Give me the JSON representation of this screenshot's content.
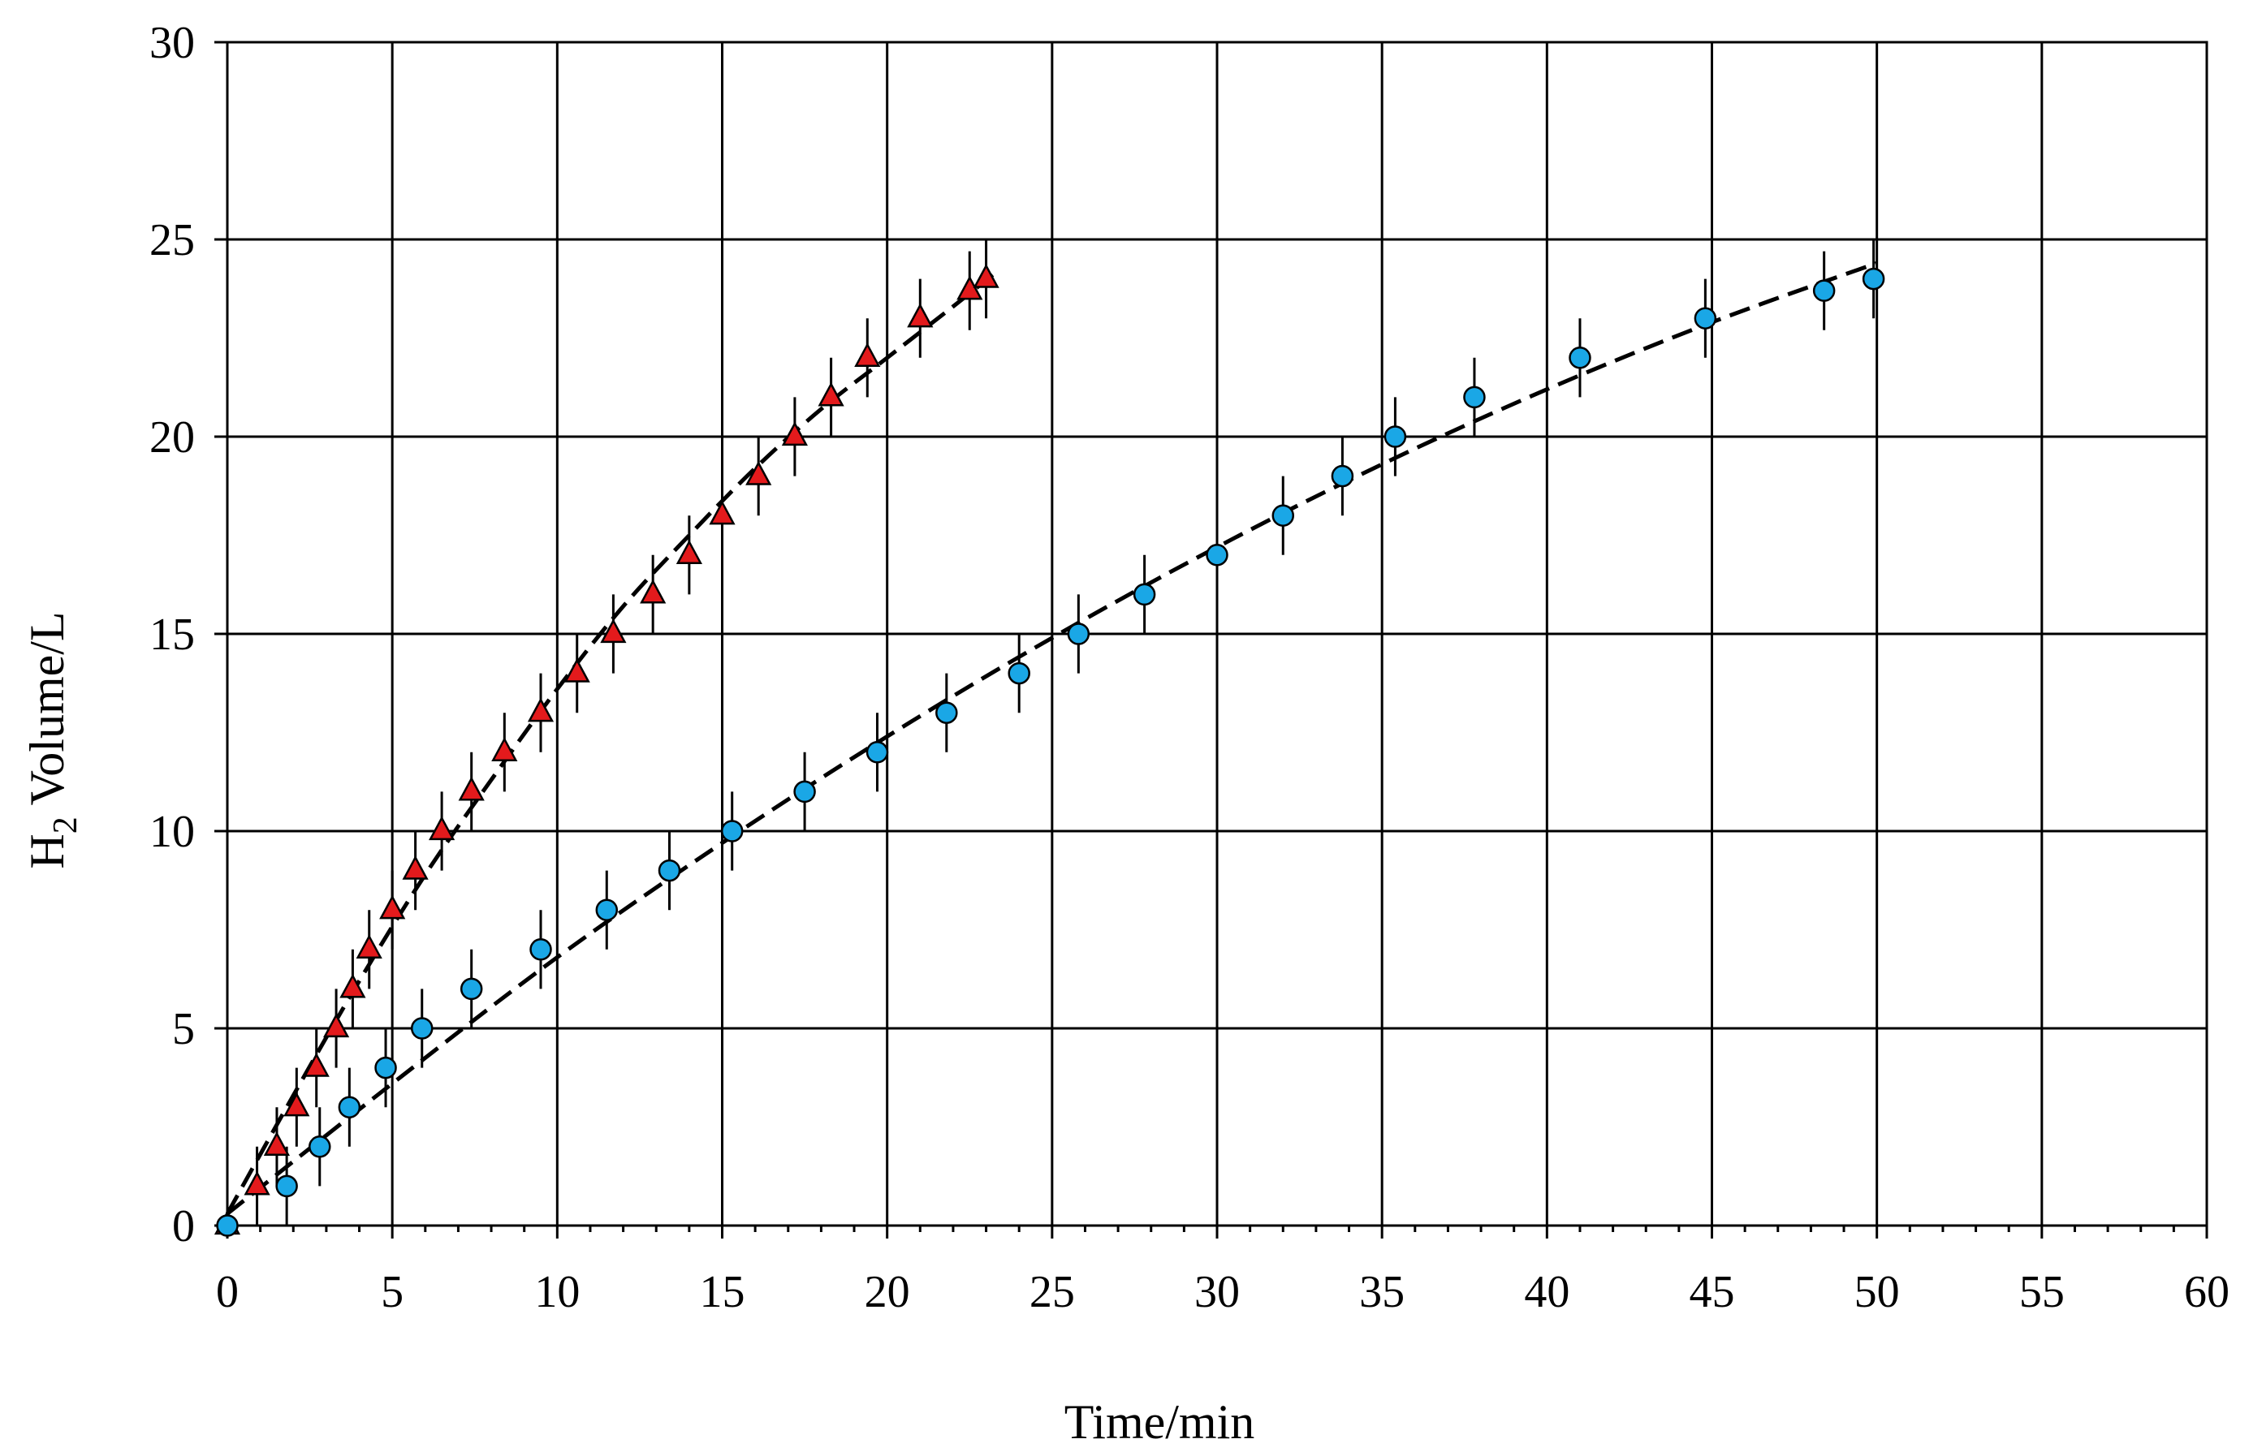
{
  "chart_data": {
    "type": "scatter",
    "xlabel": "Time/min",
    "ylabel_main": "H",
    "ylabel_sub": "2",
    "ylabel_rest": " Volume/L",
    "xlim": [
      0,
      60
    ],
    "ylim": [
      0,
      30
    ],
    "xticks": [
      0,
      5,
      10,
      15,
      20,
      25,
      30,
      35,
      40,
      45,
      50,
      55,
      60
    ],
    "yticks": [
      0,
      5,
      10,
      15,
      20,
      25,
      30
    ],
    "xtick_labels": [
      "0",
      "5",
      "10",
      "15",
      "20",
      "25",
      "30",
      "35",
      "40",
      "45",
      "50",
      "55",
      "60"
    ],
    "ytick_labels": [
      "0",
      "5",
      "10",
      "15",
      "20",
      "25",
      "30"
    ],
    "grid": true,
    "error_bar": 1,
    "series": [
      {
        "marker": "triangle",
        "color": "#e31a1c",
        "x": [
          0,
          0.9,
          1.5,
          2.1,
          2.7,
          3.3,
          3.8,
          4.3,
          5.0,
          5.7,
          6.5,
          7.4,
          8.4,
          9.5,
          10.6,
          11.7,
          12.9,
          14.0,
          15.0,
          16.1,
          17.2,
          18.3,
          19.4,
          21.0,
          22.5,
          23.0
        ],
        "y": [
          0,
          1,
          2,
          3,
          4,
          5,
          6,
          7,
          8,
          9,
          10,
          11,
          12,
          13,
          14,
          15,
          16,
          17,
          18,
          19,
          20,
          21,
          22,
          23,
          23.7,
          24
        ]
      },
      {
        "marker": "circle",
        "color": "#1aa7e6",
        "x": [
          0,
          1.8,
          2.8,
          3.7,
          4.8,
          5.9,
          7.4,
          9.5,
          11.5,
          13.4,
          15.3,
          17.5,
          19.7,
          21.8,
          24.0,
          25.8,
          27.8,
          30.0,
          32.0,
          33.8,
          35.4,
          37.8,
          41.0,
          44.8,
          48.4,
          49.9
        ],
        "y": [
          0,
          1,
          2,
          3,
          4,
          5,
          6,
          7,
          8,
          9,
          10,
          11,
          12,
          13,
          14,
          15,
          16,
          17,
          18,
          19,
          20,
          21,
          22,
          23,
          23.7,
          24
        ]
      }
    ],
    "fits": [
      {
        "style": "dashed",
        "x": [
          0,
          2,
          4,
          6,
          8,
          10,
          12,
          14,
          16,
          18,
          20,
          22,
          23.2
        ],
        "y": [
          0.3,
          3.3,
          6.2,
          8.9,
          11.3,
          13.6,
          15.7,
          17.5,
          19.2,
          20.7,
          22.0,
          23.3,
          24.1
        ]
      },
      {
        "style": "dashed",
        "x": [
          0,
          5,
          10,
          15,
          20,
          25,
          30,
          35,
          40,
          45,
          50
        ],
        "y": [
          0.3,
          3.6,
          6.8,
          9.7,
          12.4,
          14.9,
          17.2,
          19.3,
          21.2,
          22.9,
          24.4
        ]
      }
    ]
  }
}
